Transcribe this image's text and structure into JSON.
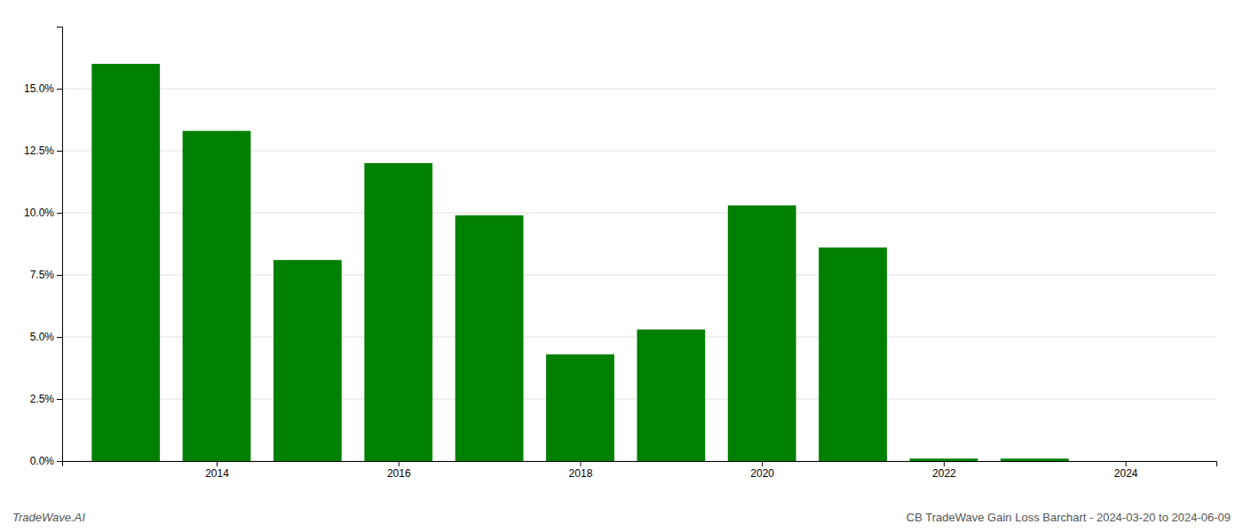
{
  "chart_data": {
    "type": "bar",
    "x": [
      2013,
      2014,
      2015,
      2016,
      2017,
      2018,
      2019,
      2020,
      2021,
      2022,
      2023
    ],
    "values": [
      0.16,
      0.133,
      0.081,
      0.12,
      0.099,
      0.043,
      0.053,
      0.103,
      0.086,
      0.001,
      0.001
    ],
    "color": "#008000",
    "xlim": [
      2012.3,
      2025.0
    ],
    "xticks": [
      2014,
      2016,
      2018,
      2020,
      2022,
      2024
    ],
    "ylim": [
      0,
      0.175
    ],
    "yticks": [
      {
        "value": 0.0,
        "label": "0.0%"
      },
      {
        "value": 0.025,
        "label": "2.5%"
      },
      {
        "value": 0.05,
        "label": "5.0%"
      },
      {
        "value": 0.075,
        "label": "7.5%"
      },
      {
        "value": 0.1,
        "label": "10.0%"
      },
      {
        "value": 0.125,
        "label": "12.5%"
      },
      {
        "value": 0.15,
        "label": "15.0%"
      }
    ],
    "grid": true,
    "annotations": [
      "TradeWave.AI",
      "CB TradeWave Gain Loss Barchart - 2024-03-20 to 2024-06-09"
    ]
  }
}
